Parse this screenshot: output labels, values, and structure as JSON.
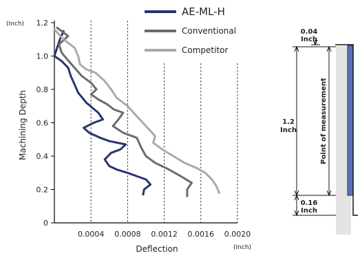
{
  "chart_data": {
    "type": "line",
    "xlabel": "Deflection",
    "x_unit": "(Inch)",
    "ylabel": "Machining Depth",
    "y_unit": "(Inch)",
    "xlim": [
      0,
      0.002
    ],
    "ylim": [
      0,
      1.2
    ],
    "x_ticks": [
      "0.0004",
      "0.0008",
      "0.0012",
      "0.0016",
      "0.0020"
    ],
    "y_ticks": [
      "0",
      "0.2",
      "0.4",
      "0.6",
      "0.8",
      "1.0",
      "1.2"
    ],
    "grid": "vertical dashed",
    "legend_position": "top-right",
    "series": [
      {
        "name": "AE-ML-H",
        "color": "#27336e",
        "points": [
          [
            0.0001,
            1.15
          ],
          [
            6e-05,
            1.1
          ],
          [
            3e-05,
            1.05
          ],
          [
            0.0,
            1.0
          ],
          [
            8e-05,
            0.97
          ],
          [
            0.00015,
            0.93
          ],
          [
            0.00018,
            0.88
          ],
          [
            0.00022,
            0.83
          ],
          [
            0.00026,
            0.78
          ],
          [
            0.00035,
            0.72
          ],
          [
            0.00048,
            0.66
          ],
          [
            0.00053,
            0.62
          ],
          [
            0.00043,
            0.6
          ],
          [
            0.00032,
            0.57
          ],
          [
            0.00038,
            0.54
          ],
          [
            0.0005,
            0.51
          ],
          [
            0.0006,
            0.49
          ],
          [
            0.00078,
            0.47
          ],
          [
            0.00072,
            0.44
          ],
          [
            0.00062,
            0.42
          ],
          [
            0.00055,
            0.38
          ],
          [
            0.0006,
            0.34
          ],
          [
            0.00068,
            0.32
          ],
          [
            0.0008,
            0.3
          ],
          [
            0.0009,
            0.28
          ],
          [
            0.001,
            0.26
          ],
          [
            0.00105,
            0.23
          ],
          [
            0.00098,
            0.2
          ],
          [
            0.00097,
            0.17
          ]
        ]
      },
      {
        "name": "Conventional",
        "color": "#6b6b6b",
        "points": [
          [
            3e-05,
            1.17
          ],
          [
            0.00015,
            1.12
          ],
          [
            5e-05,
            1.07
          ],
          [
            8e-05,
            1.02
          ],
          [
            0.00014,
            0.98
          ],
          [
            0.00022,
            0.93
          ],
          [
            0.0003,
            0.88
          ],
          [
            0.0004,
            0.84
          ],
          [
            0.00046,
            0.8
          ],
          [
            0.0004,
            0.77
          ],
          [
            0.00048,
            0.74
          ],
          [
            0.00058,
            0.71
          ],
          [
            0.00065,
            0.68
          ],
          [
            0.00075,
            0.66
          ],
          [
            0.0007,
            0.62
          ],
          [
            0.00064,
            0.58
          ],
          [
            0.00075,
            0.54
          ],
          [
            0.0009,
            0.51
          ],
          [
            0.00095,
            0.45
          ],
          [
            0.001,
            0.4
          ],
          [
            0.0011,
            0.36
          ],
          [
            0.00125,
            0.32
          ],
          [
            0.00138,
            0.28
          ],
          [
            0.0015,
            0.24
          ],
          [
            0.00145,
            0.2
          ],
          [
            0.00145,
            0.16
          ]
        ]
      },
      {
        "name": "Competitor",
        "color": "#aaaaaa",
        "points": [
          [
            0.0,
            1.16
          ],
          [
            0.0001,
            1.1
          ],
          [
            0.00022,
            1.05
          ],
          [
            0.00026,
            1.0
          ],
          [
            0.00028,
            0.95
          ],
          [
            0.00035,
            0.92
          ],
          [
            0.00045,
            0.9
          ],
          [
            0.00055,
            0.85
          ],
          [
            0.00062,
            0.8
          ],
          [
            0.00068,
            0.75
          ],
          [
            0.0008,
            0.7
          ],
          [
            0.0009,
            0.64
          ],
          [
            0.001,
            0.58
          ],
          [
            0.0011,
            0.52
          ],
          [
            0.00108,
            0.48
          ],
          [
            0.00118,
            0.44
          ],
          [
            0.0013,
            0.4
          ],
          [
            0.00142,
            0.36
          ],
          [
            0.00155,
            0.33
          ],
          [
            0.00165,
            0.3
          ],
          [
            0.00172,
            0.26
          ],
          [
            0.00177,
            0.22
          ],
          [
            0.0018,
            0.18
          ]
        ]
      }
    ]
  },
  "diagram": {
    "top_gap": {
      "value": "0.04",
      "unit": "Inch"
    },
    "depth": {
      "value": "1.2",
      "unit": "Inch"
    },
    "bottom_gap": {
      "value": "0.16",
      "unit": "Inch"
    },
    "label": "Point of measurement",
    "tool_color": "#5a73b8",
    "workpiece_color": "#e3e3e3"
  }
}
